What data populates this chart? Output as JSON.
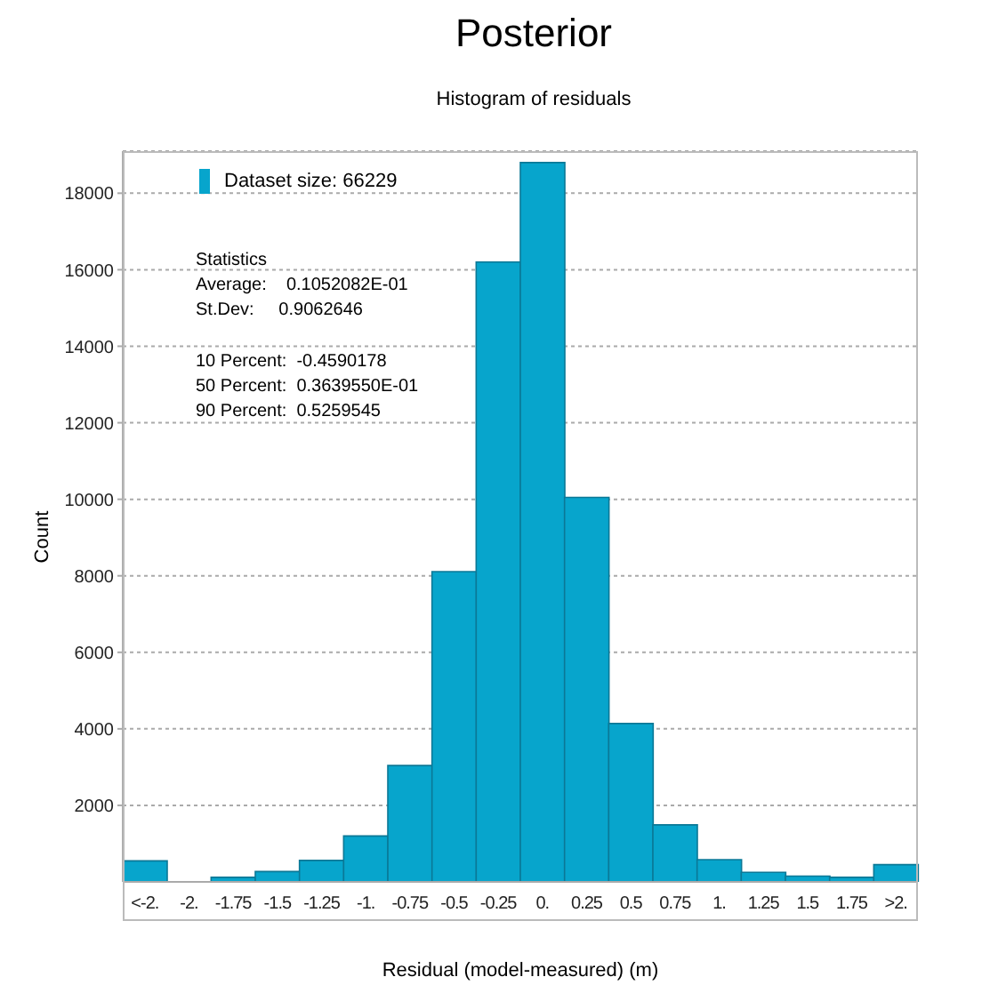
{
  "chart_data": {
    "type": "bar",
    "title": "Posterior",
    "subtitle": "Histogram of residuals",
    "xlabel": "Residual (model-measured) (m)",
    "ylabel": "Count",
    "categories": [
      "<-2.",
      "-2.",
      "-1.75",
      "-1.5",
      "-1.25",
      "-1.",
      "-0.75",
      "-0.5",
      "-0.25",
      "0.",
      "0.25",
      "0.5",
      "0.75",
      "1.",
      "1.25",
      "1.5",
      "1.75",
      ">2."
    ],
    "series": [
      {
        "name": "Dataset size: 66229",
        "color": "#07a5cc",
        "values": [
          550,
          null,
          120,
          270,
          560,
          1200,
          3040,
          8110,
          16200,
          18800,
          10050,
          4140,
          1490,
          580,
          250,
          150,
          120,
          450
        ]
      }
    ],
    "ylim": [
      0,
      19100
    ],
    "yticks": [
      2000,
      4000,
      6000,
      8000,
      10000,
      12000,
      14000,
      16000,
      18000
    ],
    "grid": "y",
    "legend": "top left",
    "annotations": [
      "Statistics",
      "Average:    0.1052082E-01",
      "St.Dev:     0.9062646",
      "10 Percent:  -0.4590178",
      "50 Percent:  0.3639550E-01",
      "90 Percent:  0.5259545"
    ]
  }
}
